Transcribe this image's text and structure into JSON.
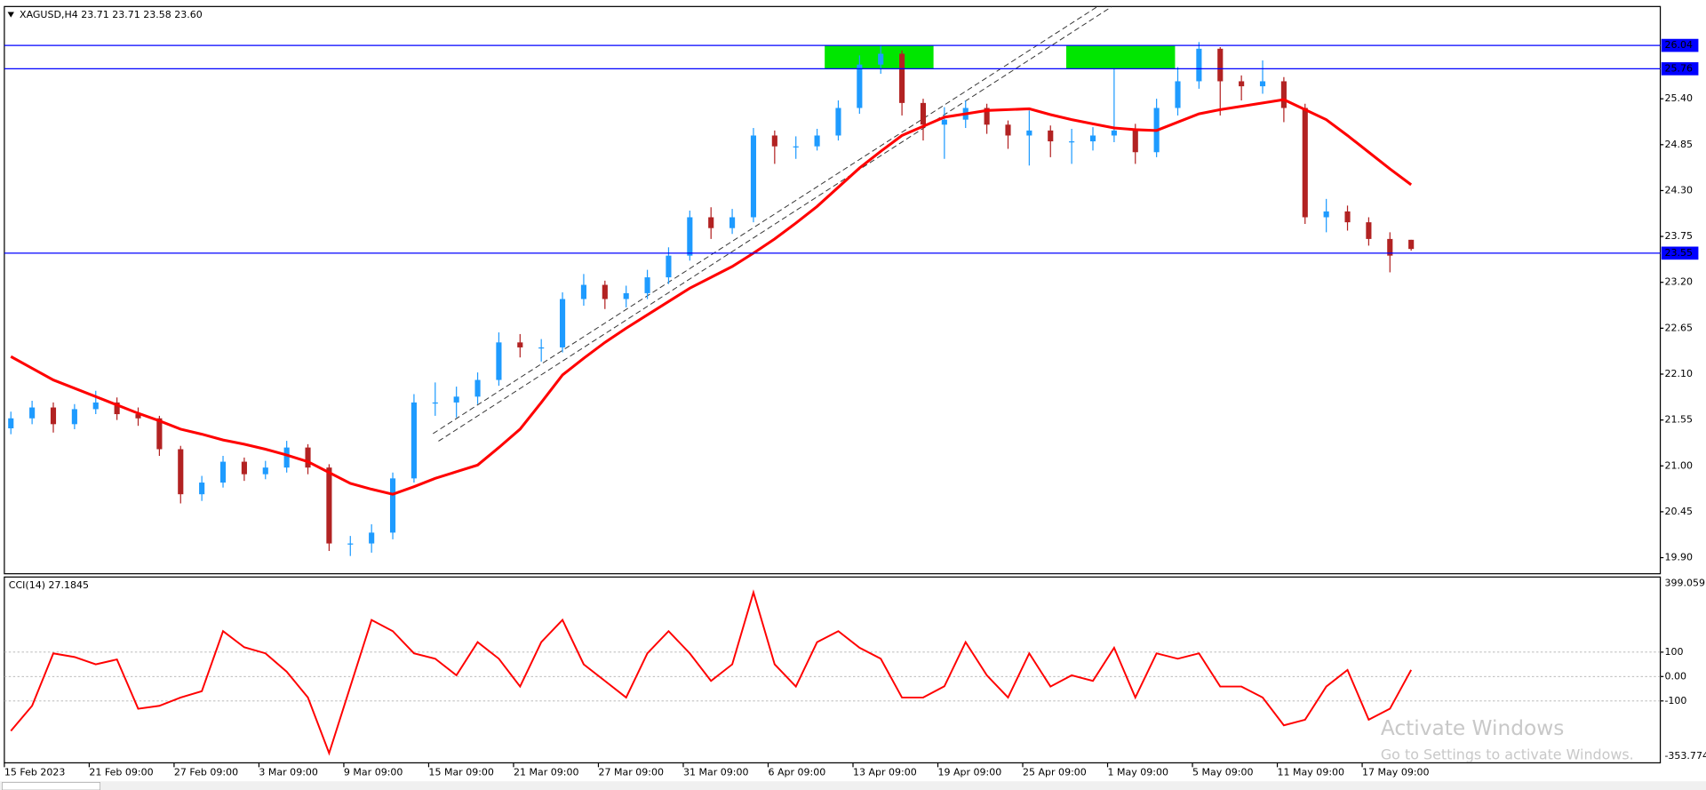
{
  "chart_data": [
    {
      "type": "candlestick",
      "title": "XAGUSD,H4  23.71 23.71 23.58 23.60",
      "categories": [
        "15 Feb 2023",
        null,
        null,
        null,
        "21 Feb 09:00",
        null,
        null,
        null,
        "27 Feb 09:00",
        null,
        null,
        null,
        "3 Mar 09:00",
        null,
        null,
        null,
        "9 Mar 09:00",
        null,
        null,
        null,
        "15 Mar 09:00",
        null,
        null,
        null,
        "21 Mar 09:00",
        null,
        null,
        null,
        "27 Mar 09:00",
        null,
        null,
        null,
        "31 Mar 09:00",
        null,
        null,
        null,
        "6 Apr 09:00",
        null,
        null,
        null,
        "13 Apr 09:00",
        null,
        null,
        null,
        "19 Apr 09:00",
        null,
        null,
        null,
        "25 Apr 09:00",
        null,
        null,
        null,
        "1 May 09:00",
        null,
        null,
        null,
        "5 May 09:00",
        null,
        null,
        null,
        "11 May 09:00",
        null,
        null,
        null,
        "17 May 09:00",
        null,
        null
      ],
      "open": [
        21.45,
        21.57,
        21.7,
        21.5,
        21.68,
        21.76,
        21.62,
        21.57,
        21.2,
        20.66,
        20.8,
        21.05,
        20.9,
        20.98,
        21.22,
        20.98,
        20.07,
        20.07,
        20.2,
        20.85,
        21.76,
        21.76,
        21.83,
        22.03,
        22.48,
        22.42,
        22.42,
        23.0,
        23.17,
        23.0,
        23.07,
        23.26,
        23.52,
        23.98,
        23.85,
        23.98,
        24.96,
        24.83,
        24.83,
        24.96,
        25.29,
        25.81,
        25.94,
        25.35,
        25.09,
        25.15,
        25.29,
        25.09,
        24.96,
        25.02,
        24.89,
        24.89,
        24.96,
        25.02,
        24.76,
        25.29,
        25.61,
        26.0,
        25.61,
        25.55,
        25.61,
        25.29,
        23.98,
        24.05,
        23.92,
        23.72,
        23.71
      ],
      "high": [
        21.65,
        21.78,
        21.76,
        21.74,
        21.9,
        21.82,
        21.7,
        21.6,
        21.24,
        20.88,
        21.12,
        21.1,
        21.06,
        21.3,
        21.26,
        21.02,
        20.16,
        20.3,
        20.92,
        21.86,
        22.0,
        21.95,
        22.12,
        22.6,
        22.58,
        22.52,
        23.08,
        23.3,
        23.22,
        23.16,
        23.35,
        23.62,
        24.06,
        24.1,
        24.08,
        25.05,
        25.02,
        24.95,
        25.04,
        25.38,
        25.92,
        26.04,
        25.98,
        25.4,
        25.3,
        25.38,
        25.34,
        25.14,
        25.26,
        25.08,
        25.04,
        25.06,
        25.76,
        25.1,
        25.4,
        25.78,
        26.08,
        26.02,
        25.68,
        25.86,
        25.66,
        25.34,
        24.2,
        24.12,
        23.98,
        23.8,
        23.71
      ],
      "low": [
        21.38,
        21.5,
        21.4,
        21.44,
        21.62,
        21.55,
        21.48,
        21.12,
        20.55,
        20.58,
        20.74,
        20.82,
        20.84,
        20.92,
        20.9,
        19.98,
        19.92,
        19.96,
        20.12,
        20.8,
        21.6,
        21.58,
        21.74,
        21.96,
        22.3,
        22.25,
        22.36,
        22.92,
        22.88,
        22.9,
        23.0,
        23.18,
        23.46,
        23.72,
        23.78,
        23.92,
        24.62,
        24.68,
        24.78,
        24.9,
        25.22,
        25.7,
        25.2,
        24.9,
        24.68,
        25.05,
        24.98,
        24.8,
        24.6,
        24.7,
        24.62,
        24.78,
        24.88,
        24.62,
        24.7,
        25.2,
        25.52,
        25.2,
        25.38,
        25.46,
        25.12,
        23.9,
        23.8,
        23.82,
        23.64,
        23.32,
        23.58
      ],
      "close": [
        21.57,
        21.7,
        21.5,
        21.68,
        21.76,
        21.62,
        21.57,
        21.2,
        20.66,
        20.8,
        21.05,
        20.9,
        20.98,
        21.22,
        20.98,
        20.07,
        20.07,
        20.2,
        20.85,
        21.76,
        21.76,
        21.83,
        22.03,
        22.48,
        22.42,
        22.42,
        23.0,
        23.17,
        23.0,
        23.07,
        23.26,
        23.52,
        23.98,
        23.85,
        23.98,
        24.96,
        24.83,
        24.83,
        24.96,
        25.29,
        25.81,
        25.94,
        25.35,
        25.09,
        25.15,
        25.29,
        25.09,
        24.96,
        25.02,
        24.89,
        24.89,
        24.96,
        25.02,
        24.76,
        25.29,
        25.61,
        26.0,
        25.61,
        25.55,
        25.61,
        25.29,
        23.98,
        24.05,
        23.92,
        23.72,
        23.52,
        23.6
      ],
      "up_color": "#1e9bff",
      "down_color": "#b22222",
      "ma": {
        "color": "#ff0000",
        "values": [
          22.31,
          22.17,
          22.03,
          21.93,
          21.83,
          21.73,
          21.63,
          21.54,
          21.44,
          21.38,
          21.31,
          21.26,
          21.2,
          21.13,
          21.05,
          20.92,
          20.79,
          20.72,
          20.66,
          20.75,
          20.85,
          20.93,
          21.01,
          21.22,
          21.44,
          21.76,
          22.09,
          22.29,
          22.48,
          22.65,
          22.81,
          22.97,
          23.13,
          23.26,
          23.39,
          23.55,
          23.72,
          23.91,
          24.11,
          24.34,
          24.57,
          24.77,
          24.96,
          25.07,
          25.18,
          25.22,
          25.26,
          25.27,
          25.28,
          25.21,
          25.15,
          25.1,
          25.05,
          25.03,
          25.02,
          25.12,
          25.22,
          25.27,
          25.31,
          25.35,
          25.39,
          25.27,
          25.15,
          24.96,
          24.76,
          24.56,
          24.37
        ]
      },
      "levels": {
        "color": "#0000ff",
        "values": [
          26.04,
          25.76,
          23.55
        ]
      },
      "ylim": [
        19.72,
        26.48
      ],
      "yticks": [
        {
          "value": 19.9,
          "label": "19.90"
        },
        20.45,
        {
          "value": 21,
          "label": "21.00"
        },
        21.55,
        {
          "value": 22.1,
          "label": "22.10"
        },
        22.65,
        {
          "value": 23.2,
          "label": "23.20"
        },
        23.75,
        {
          "value": 24.3,
          "label": "24.30"
        },
        24.85,
        {
          "value": 25.4,
          "label": "25.40"
        }
      ]
    },
    {
      "type": "line",
      "title": "CCI(14) 27.1845",
      "values": [
        -223,
        -120,
        95,
        80,
        50,
        70,
        -132,
        -120,
        -86,
        -60,
        186,
        120,
        95,
        20,
        -86,
        -314,
        -41,
        232,
        186,
        95,
        73,
        5,
        141,
        73,
        -41,
        141,
        232,
        50,
        -18,
        -86,
        95,
        186,
        95,
        -18,
        50,
        345,
        50,
        -41,
        141,
        186,
        118,
        73,
        -86,
        -86,
        -40,
        141,
        5,
        -86,
        95,
        -41,
        5,
        -18,
        118,
        -86,
        95,
        73,
        95,
        -41,
        -41,
        -86,
        -200,
        -177,
        -41,
        27,
        -177,
        -132,
        27.1845
      ],
      "color": "#ff0000",
      "ylim": [
        -353.774,
        399.059
      ],
      "yticks": [
        100,
        {
          "value": 0,
          "label": "0.00"
        },
        -100
      ],
      "grid": true
    }
  ],
  "watermark": {
    "title": "Activate Windows",
    "subtitle": "Go to Settings to activate Windows."
  }
}
